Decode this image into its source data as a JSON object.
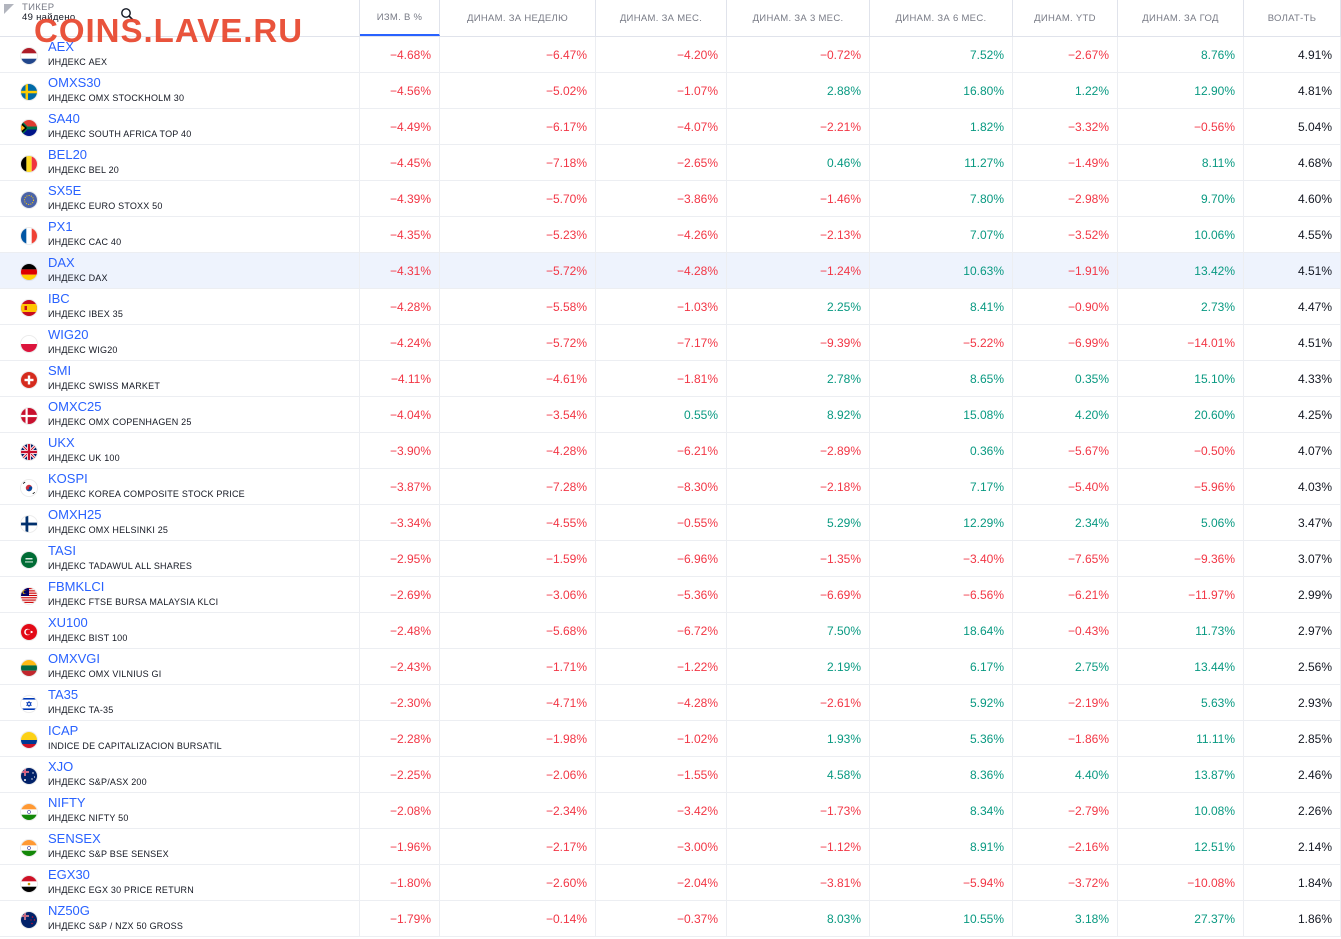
{
  "header": {
    "ticker_label": "ТИКЕР",
    "found": "49 найдено",
    "columns": [
      "ИЗМ. В %",
      "ДИНАМ. ЗА НЕДЕЛЮ",
      "ДИНАМ. ЗА МЕС.",
      "ДИНАМ. ЗА 3 МЕС.",
      "ДИНАМ. ЗА 6 МЕС.",
      "ДИНАМ. YTD",
      "ДИНАМ. ЗА ГОД",
      "ВОЛАТ-ТЬ"
    ]
  },
  "watermark": "COINS.LAVE.RU",
  "rows": [
    {
      "symbol": "AEX",
      "desc": "ИНДЕКС AEX",
      "flag": "nl",
      "chg": "−4.68%",
      "w": "−6.47%",
      "m": "−4.20%",
      "m3": "−0.72%",
      "m6": "7.52%",
      "ytd": "−2.67%",
      "y": "8.76%",
      "vol": "4.91%"
    },
    {
      "symbol": "OMXS30",
      "desc": "ИНДЕКС OMX STOCKHOLM 30",
      "flag": "se",
      "chg": "−4.56%",
      "w": "−5.02%",
      "m": "−1.07%",
      "m3": "2.88%",
      "m6": "16.80%",
      "ytd": "1.22%",
      "y": "12.90%",
      "vol": "4.81%"
    },
    {
      "symbol": "SA40",
      "desc": "ИНДЕКС SOUTH AFRICA TOP 40",
      "flag": "za",
      "chg": "−4.49%",
      "w": "−6.17%",
      "m": "−4.07%",
      "m3": "−2.21%",
      "m6": "1.82%",
      "ytd": "−3.32%",
      "y": "−0.56%",
      "vol": "5.04%"
    },
    {
      "symbol": "BEL20",
      "desc": "ИНДЕКС BEL 20",
      "flag": "be",
      "chg": "−4.45%",
      "w": "−7.18%",
      "m": "−2.65%",
      "m3": "0.46%",
      "m6": "11.27%",
      "ytd": "−1.49%",
      "y": "8.11%",
      "vol": "4.68%"
    },
    {
      "symbol": "SX5E",
      "desc": "ИНДЕКС EURO STOXX 50",
      "flag": "eu",
      "chg": "−4.39%",
      "w": "−5.70%",
      "m": "−3.86%",
      "m3": "−1.46%",
      "m6": "7.80%",
      "ytd": "−2.98%",
      "y": "9.70%",
      "vol": "4.60%"
    },
    {
      "symbol": "PX1",
      "desc": "ИНДЕКС CAC 40",
      "flag": "fr",
      "chg": "−4.35%",
      "w": "−5.23%",
      "m": "−4.26%",
      "m3": "−2.13%",
      "m6": "7.07%",
      "ytd": "−3.52%",
      "y": "10.06%",
      "vol": "4.55%"
    },
    {
      "symbol": "DAX",
      "desc": "ИНДЕКС DAX",
      "flag": "de",
      "chg": "−4.31%",
      "w": "−5.72%",
      "m": "−4.28%",
      "m3": "−1.24%",
      "m6": "10.63%",
      "ytd": "−1.91%",
      "y": "13.42%",
      "vol": "4.51%",
      "highlight": true
    },
    {
      "symbol": "IBC",
      "desc": "ИНДЕКС IBEX 35",
      "flag": "es",
      "chg": "−4.28%",
      "w": "−5.58%",
      "m": "−1.03%",
      "m3": "2.25%",
      "m6": "8.41%",
      "ytd": "−0.90%",
      "y": "2.73%",
      "vol": "4.47%"
    },
    {
      "symbol": "WIG20",
      "desc": "ИНДЕКС WIG20",
      "flag": "pl",
      "chg": "−4.24%",
      "w": "−5.72%",
      "m": "−7.17%",
      "m3": "−9.39%",
      "m6": "−5.22%",
      "ytd": "−6.99%",
      "y": "−14.01%",
      "vol": "4.51%"
    },
    {
      "symbol": "SMI",
      "desc": "ИНДЕКС SWISS MARKET",
      "flag": "ch",
      "chg": "−4.11%",
      "w": "−4.61%",
      "m": "−1.81%",
      "m3": "2.78%",
      "m6": "8.65%",
      "ytd": "0.35%",
      "y": "15.10%",
      "vol": "4.33%"
    },
    {
      "symbol": "OMXC25",
      "desc": "ИНДЕКС OMX COPENHAGEN 25",
      "flag": "dk",
      "chg": "−4.04%",
      "w": "−3.54%",
      "m": "0.55%",
      "m3": "8.92%",
      "m6": "15.08%",
      "ytd": "4.20%",
      "y": "20.60%",
      "vol": "4.25%"
    },
    {
      "symbol": "UKX",
      "desc": "ИНДЕКС UK 100",
      "flag": "gb",
      "chg": "−3.90%",
      "w": "−4.28%",
      "m": "−6.21%",
      "m3": "−2.89%",
      "m6": "0.36%",
      "ytd": "−5.67%",
      "y": "−0.50%",
      "vol": "4.07%"
    },
    {
      "symbol": "KOSPI",
      "desc": "ИНДЕКС KOREA COMPOSITE STOCK PRICE",
      "flag": "kr",
      "chg": "−3.87%",
      "w": "−7.28%",
      "m": "−8.30%",
      "m3": "−2.18%",
      "m6": "7.17%",
      "ytd": "−5.40%",
      "y": "−5.96%",
      "vol": "4.03%"
    },
    {
      "symbol": "OMXH25",
      "desc": "ИНДЕКС OMX HELSINKI 25",
      "flag": "fi",
      "chg": "−3.34%",
      "w": "−4.55%",
      "m": "−0.55%",
      "m3": "5.29%",
      "m6": "12.29%",
      "ytd": "2.34%",
      "y": "5.06%",
      "vol": "3.47%"
    },
    {
      "symbol": "TASI",
      "desc": "ИНДЕКС TADAWUL ALL SHARES",
      "flag": "sa",
      "chg": "−2.95%",
      "w": "−1.59%",
      "m": "−6.96%",
      "m3": "−1.35%",
      "m6": "−3.40%",
      "ytd": "−7.65%",
      "y": "−9.36%",
      "vol": "3.07%"
    },
    {
      "symbol": "FBMKLCI",
      "desc": "ИНДЕКС FTSE BURSA MALAYSIA KLCI",
      "flag": "my",
      "chg": "−2.69%",
      "w": "−3.06%",
      "m": "−5.36%",
      "m3": "−6.69%",
      "m6": "−6.56%",
      "ytd": "−6.21%",
      "y": "−11.97%",
      "vol": "2.99%"
    },
    {
      "symbol": "XU100",
      "desc": "ИНДЕКС BIST 100",
      "flag": "tr",
      "chg": "−2.48%",
      "w": "−5.68%",
      "m": "−6.72%",
      "m3": "7.50%",
      "m6": "18.64%",
      "ytd": "−0.43%",
      "y": "11.73%",
      "vol": "2.97%"
    },
    {
      "symbol": "OMXVGI",
      "desc": "ИНДЕКС OMX VILNIUS GI",
      "flag": "lt",
      "chg": "−2.43%",
      "w": "−1.71%",
      "m": "−1.22%",
      "m3": "2.19%",
      "m6": "6.17%",
      "ytd": "2.75%",
      "y": "13.44%",
      "vol": "2.56%"
    },
    {
      "symbol": "TA35",
      "desc": "ИНДЕКС TA-35",
      "flag": "il",
      "chg": "−2.30%",
      "w": "−4.71%",
      "m": "−4.28%",
      "m3": "−2.61%",
      "m6": "5.92%",
      "ytd": "−2.19%",
      "y": "5.63%",
      "vol": "2.93%"
    },
    {
      "symbol": "ICAP",
      "desc": "INDICE DE CAPITALIZACION BURSATIL",
      "flag": "co",
      "chg": "−2.28%",
      "w": "−1.98%",
      "m": "−1.02%",
      "m3": "1.93%",
      "m6": "5.36%",
      "ytd": "−1.86%",
      "y": "11.11%",
      "vol": "2.85%"
    },
    {
      "symbol": "XJO",
      "desc": "ИНДЕКС S&P/ASX 200",
      "flag": "au",
      "chg": "−2.25%",
      "w": "−2.06%",
      "m": "−1.55%",
      "m3": "4.58%",
      "m6": "8.36%",
      "ytd": "4.40%",
      "y": "13.87%",
      "vol": "2.46%"
    },
    {
      "symbol": "NIFTY",
      "desc": "ИНДЕКС NIFTY 50",
      "flag": "in",
      "chg": "−2.08%",
      "w": "−2.34%",
      "m": "−3.42%",
      "m3": "−1.73%",
      "m6": "8.34%",
      "ytd": "−2.79%",
      "y": "10.08%",
      "vol": "2.26%"
    },
    {
      "symbol": "SENSEX",
      "desc": "ИНДЕКС S&P BSE SENSEX",
      "flag": "in",
      "chg": "−1.96%",
      "w": "−2.17%",
      "m": "−3.00%",
      "m3": "−1.12%",
      "m6": "8.91%",
      "ytd": "−2.16%",
      "y": "12.51%",
      "vol": "2.14%"
    },
    {
      "symbol": "EGX30",
      "desc": "ИНДЕКС EGX 30 PRICE RETURN",
      "flag": "eg",
      "chg": "−1.80%",
      "w": "−2.60%",
      "m": "−2.04%",
      "m3": "−3.81%",
      "m6": "−5.94%",
      "ytd": "−3.72%",
      "y": "−10.08%",
      "vol": "1.84%"
    },
    {
      "symbol": "NZ50G",
      "desc": "ИНДЕКС S&P / NZX 50 GROSS",
      "flag": "nz",
      "chg": "−1.79%",
      "w": "−0.14%",
      "m": "−0.37%",
      "m3": "8.03%",
      "m6": "10.55%",
      "ytd": "3.18%",
      "y": "27.37%",
      "vol": "1.86%"
    }
  ],
  "colors": {
    "negative": "#f23645",
    "positive": "#089981",
    "symbol": "#2962ff",
    "watermark": "#e8452c"
  }
}
